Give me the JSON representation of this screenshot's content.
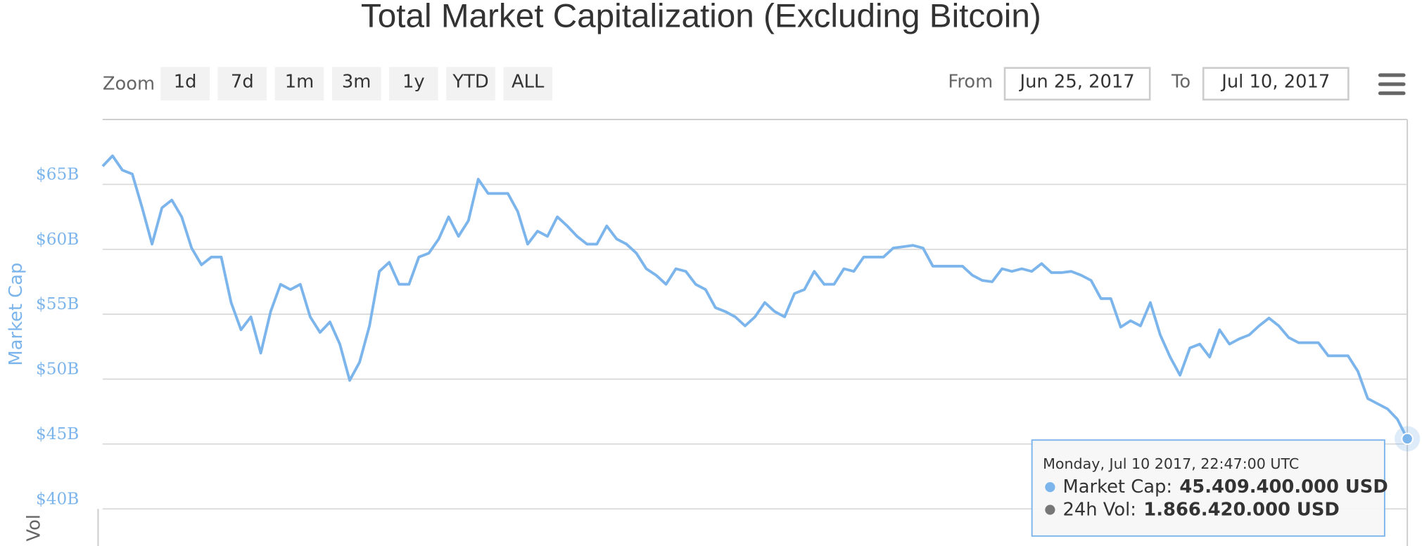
{
  "chart_data": {
    "type": "line",
    "title": "Total Market Capitalization (Excluding Bitcoin)",
    "y_axis_label": "Market Cap",
    "lower_axis_label": "Vol",
    "zoom_label": "Zoom",
    "zoom_buttons": [
      "1d",
      "7d",
      "1m",
      "3m",
      "1y",
      "YTD",
      "ALL"
    ],
    "from_label": "From",
    "from_date": "Jun 25, 2017",
    "to_label": "To",
    "to_date": "Jul 10, 2017",
    "tooltip": {
      "date": "Monday, Jul 10 2017, 22:47:00 UTC",
      "rows": [
        {
          "name": "Market Cap:",
          "value": "45.409.400.000 USD",
          "color": "#7cb5ec"
        },
        {
          "name": "24h Vol:",
          "value": "1.866.420.000 USD",
          "color": "#777777"
        }
      ]
    },
    "color": "#7cb5ec",
    "grid": true,
    "ylim": [
      40,
      70
    ],
    "yticks": [
      {
        "value": 40,
        "label": "$40B"
      },
      {
        "value": 45,
        "label": "$45B"
      },
      {
        "value": 50,
        "label": "$50B"
      },
      {
        "value": 55,
        "label": "$55B"
      },
      {
        "value": 60,
        "label": "$60B"
      },
      {
        "value": 65,
        "label": "$65B"
      }
    ],
    "values": [
      66.4,
      67.2,
      66.1,
      65.8,
      63.2,
      60.4,
      63.2,
      63.8,
      62.5,
      60.1,
      58.8,
      59.4,
      59.4,
      55.9,
      53.8,
      54.8,
      52.0,
      55.2,
      57.3,
      56.9,
      57.3,
      54.8,
      53.6,
      54.4,
      52.7,
      49.9,
      51.3,
      54.1,
      58.3,
      59.0,
      57.3,
      57.3,
      59.4,
      59.7,
      60.8,
      62.5,
      61.0,
      62.2,
      65.4,
      64.3,
      64.3,
      64.3,
      62.9,
      60.4,
      61.4,
      61.0,
      62.5,
      61.8,
      61.0,
      60.4,
      60.4,
      61.8,
      60.8,
      60.4,
      59.7,
      58.5,
      58.0,
      57.3,
      58.5,
      58.3,
      57.3,
      56.9,
      55.5,
      55.2,
      54.8,
      54.1,
      54.8,
      55.9,
      55.2,
      54.8,
      56.6,
      56.9,
      58.3,
      57.3,
      57.3,
      58.5,
      58.3,
      59.4,
      59.4,
      59.4,
      60.1,
      60.2,
      60.3,
      60.1,
      58.7,
      58.7,
      58.7,
      58.7,
      58.0,
      57.6,
      57.5,
      58.5,
      58.3,
      58.5,
      58.3,
      58.9,
      58.2,
      58.2,
      58.3,
      58.0,
      57.6,
      56.2,
      56.2,
      54.0,
      54.5,
      54.1,
      55.9,
      53.4,
      51.7,
      50.3,
      52.4,
      52.7,
      51.7,
      53.8,
      52.7,
      53.1,
      53.4,
      54.1,
      54.7,
      54.1,
      53.2,
      52.8,
      52.8,
      52.8,
      51.8,
      51.8,
      51.8,
      50.6,
      48.5,
      48.1,
      47.7,
      46.9,
      45.4
    ]
  }
}
